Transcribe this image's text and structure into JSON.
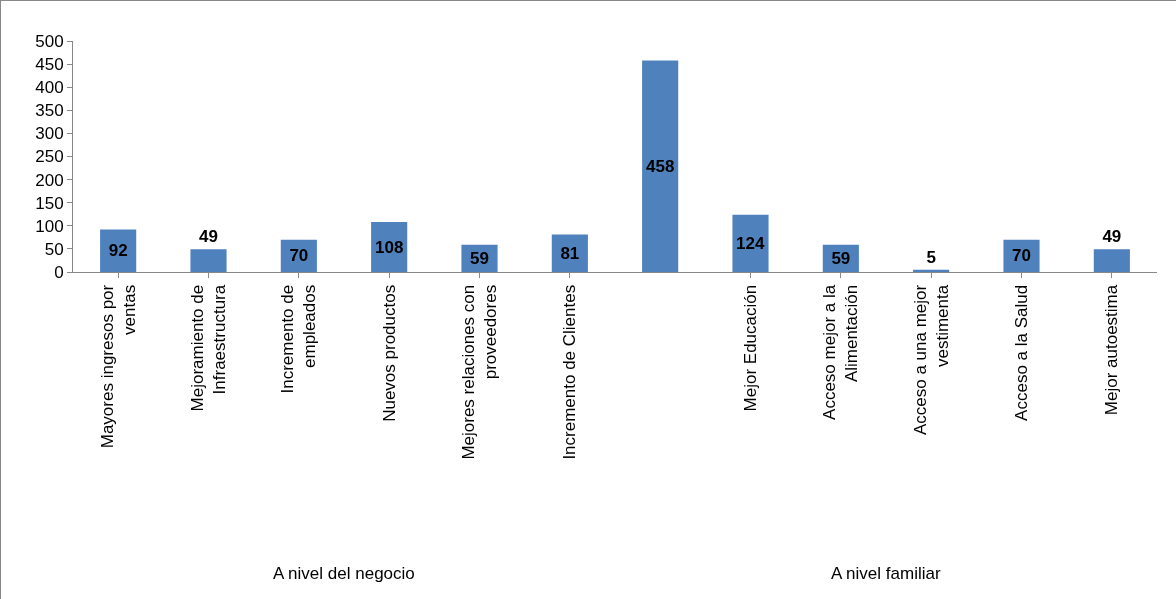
{
  "chart_data": {
    "type": "bar",
    "categories": [
      "Mayores ingresos por ventas",
      "Mejoramiento de Infraestructura",
      "Incremento de empleados",
      "Nuevos productos",
      "Mejores relaciones con proveedores",
      "Incremento de Clientes",
      null,
      "Mejor Educación",
      "Acceso mejor a la Alimentación",
      "Acceso a una mejor vestimenta",
      "Acceso a la Salud",
      "Mejor autoestima"
    ],
    "values": [
      92,
      49,
      70,
      108,
      59,
      81,
      458,
      124,
      59,
      5,
      70,
      49
    ],
    "color": "#4f81bd",
    "ylim": [
      0,
      500
    ],
    "yticks": [
      0,
      50,
      100,
      150,
      200,
      250,
      300,
      350,
      400,
      450,
      500
    ],
    "grid": false,
    "legend": false,
    "data_labels": true,
    "annotations": [
      "A nivel del negocio",
      "A nivel familiar"
    ]
  }
}
